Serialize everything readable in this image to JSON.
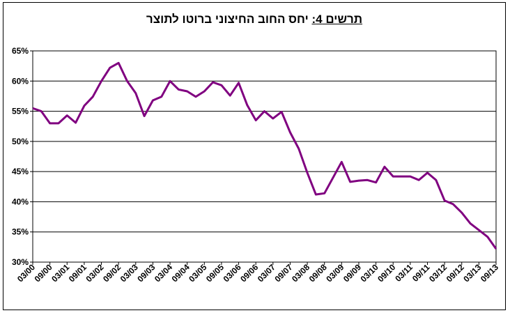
{
  "chart_data": {
    "type": "line",
    "title_label": "תרשים 4:",
    "title_text": "יחס החוב החיצוני ברוטו לתוצר",
    "xlabel": "",
    "ylabel": "",
    "ylim": [
      30,
      65
    ],
    "y_ticks": [
      "30%",
      "35%",
      "40%",
      "45%",
      "50%",
      "55%",
      "60%",
      "65%"
    ],
    "y_tick_values": [
      30,
      35,
      40,
      45,
      50,
      55,
      60,
      65
    ],
    "x_tick_labels": [
      "03/00",
      "09/00",
      "03/01",
      "09/01",
      "03/02",
      "09/02",
      "03/03",
      "09/03",
      "03/04",
      "09/04",
      "03/05",
      "09/05",
      "03/06",
      "09/06",
      "03/07",
      "09/07",
      "03/08",
      "09/08",
      "03/09",
      "09/09",
      "03/10",
      "09/10",
      "03/11",
      "09/11",
      "03/12",
      "09/12",
      "03/13",
      "09/13"
    ],
    "grid": true,
    "line_color": "#800080",
    "series": [
      {
        "values": [
          55.5,
          55.0,
          53.0,
          53.0,
          54.3,
          53.1,
          55.9,
          57.4,
          60.0,
          62.2,
          63.0,
          60.0,
          58.0,
          54.2,
          56.8,
          57.4,
          60.0,
          58.6,
          58.3,
          57.4,
          58.3,
          59.8,
          59.3,
          57.6,
          59.7,
          56.0,
          53.5,
          55.0,
          53.8,
          54.9,
          51.5,
          48.8,
          44.8,
          41.2,
          41.4,
          44.0,
          46.6,
          43.3,
          43.5,
          43.6,
          43.2,
          45.8,
          44.2,
          44.2,
          44.2,
          43.6,
          44.8,
          43.6,
          40.2,
          39.6,
          38.2,
          36.4,
          35.3,
          34.2,
          32.2
        ]
      }
    ]
  }
}
